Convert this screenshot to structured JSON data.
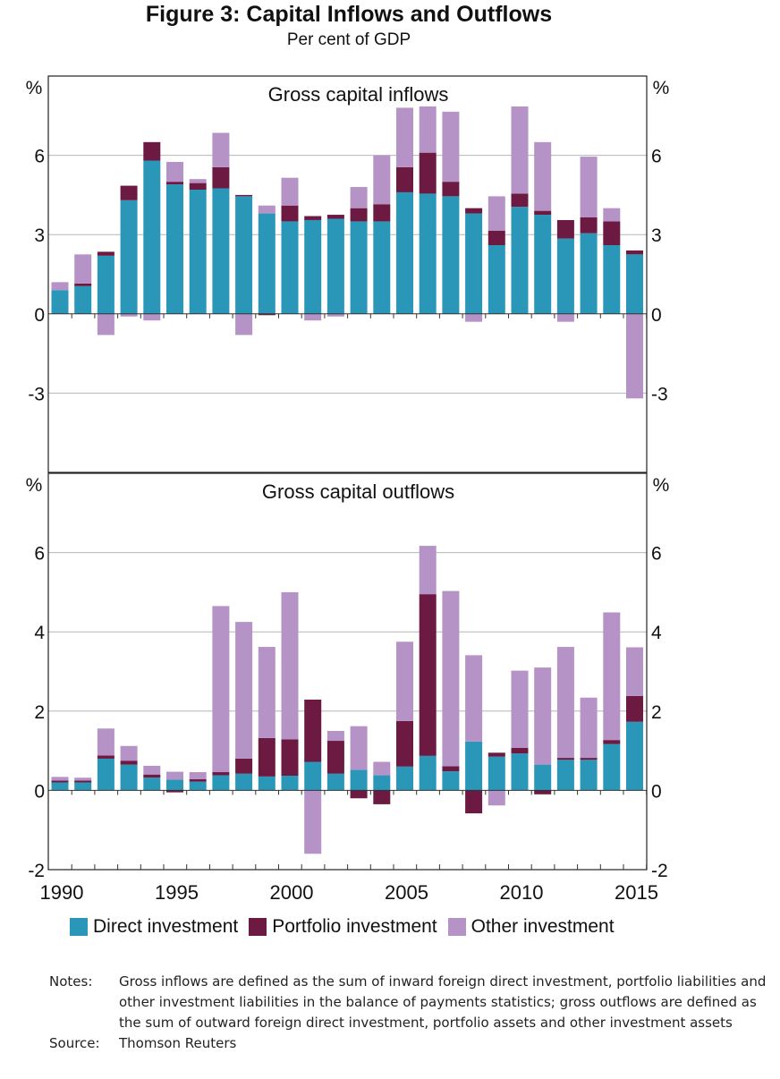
{
  "title": "Figure 3: Capital Inflows and Outflows",
  "subtitle": "Per cent of GDP",
  "colors": {
    "direct": "#2a97b8",
    "portfolio": "#6d1a42",
    "other": "#b593c6"
  },
  "legend": [
    {
      "label": "Direct investment",
      "color": "#2a97b8"
    },
    {
      "label": "Portfolio investment",
      "color": "#6d1a42"
    },
    {
      "label": "Other investment",
      "color": "#b593c6"
    }
  ],
  "notes": {
    "notes_label": "Notes:",
    "notes_text": "Gross inflows are defined as the sum of inward foreign direct investment, portfolio liabilities and other investment liabilities in the balance of payments statistics; gross outflows are defined as the sum of outward foreign direct investment, portfolio assets and other investment assets",
    "source_label": "Source:",
    "source_text": "Thomson Reuters"
  },
  "chart_data": [
    {
      "type": "bar",
      "stacked": true,
      "title": "Gross capital inflows",
      "ylabel": "%",
      "ylim": [
        -6,
        9
      ],
      "yticks": [
        -3,
        0,
        3,
        6
      ],
      "ytick_labels": [
        "-3",
        "0",
        "3",
        "6"
      ],
      "grid": true,
      "categories": [
        1990,
        1991,
        1992,
        1993,
        1994,
        1995,
        1996,
        1997,
        1998,
        1999,
        2000,
        2001,
        2002,
        2003,
        2004,
        2005,
        2006,
        2007,
        2008,
        2009,
        2010,
        2011,
        2012,
        2013,
        2014,
        2015
      ],
      "series": [
        {
          "name": "Direct investment",
          "values": [
            0.9,
            1.05,
            2.2,
            4.3,
            5.8,
            4.9,
            4.7,
            4.75,
            4.45,
            3.8,
            3.5,
            3.55,
            3.6,
            3.5,
            3.5,
            4.6,
            4.55,
            4.45,
            3.8,
            2.6,
            4.05,
            3.75,
            2.85,
            3.05,
            2.6,
            2.25
          ]
        },
        {
          "name": "Portfolio investment",
          "values": [
            0,
            0.1,
            0.15,
            0.55,
            0.7,
            0.1,
            0.25,
            0.8,
            0.05,
            -0.05,
            0.6,
            0.15,
            0.15,
            0.5,
            0.65,
            0.95,
            1.55,
            0.55,
            0.2,
            0.55,
            0.5,
            0.15,
            0.7,
            0.6,
            0.9,
            0.15
          ]
        },
        {
          "name": "Other investment",
          "values": [
            0.3,
            1.1,
            -0.8,
            -0.1,
            -0.25,
            0.75,
            0.15,
            1.3,
            -0.8,
            0.3,
            1.05,
            -0.25,
            -0.1,
            0.8,
            1.85,
            2.25,
            1.75,
            2.65,
            -0.3,
            1.3,
            3.3,
            2.6,
            -0.3,
            2.3,
            0.5,
            -3.2
          ]
        }
      ]
    },
    {
      "type": "bar",
      "stacked": true,
      "title": "Gross capital outflows",
      "ylabel": "%",
      "ylim": [
        -2,
        8
      ],
      "yticks": [
        -2,
        0,
        2,
        4,
        6
      ],
      "ytick_labels": [
        "-2",
        "0",
        "2",
        "4",
        "6"
      ],
      "grid": true,
      "x_tick_labels": [
        "1990",
        "1995",
        "2000",
        "2005",
        "2010",
        "2015"
      ],
      "categories": [
        1990,
        1991,
        1992,
        1993,
        1994,
        1995,
        1996,
        1997,
        1998,
        1999,
        2000,
        2001,
        2002,
        2003,
        2004,
        2005,
        2006,
        2007,
        2008,
        2009,
        2010,
        2011,
        2012,
        2013,
        2014,
        2015
      ],
      "series": [
        {
          "name": "Direct investment",
          "values": [
            0.2,
            0.2,
            0.8,
            0.65,
            0.32,
            0.27,
            0.22,
            0.38,
            0.42,
            0.35,
            0.37,
            0.72,
            0.42,
            0.52,
            0.38,
            0.6,
            0.87,
            0.48,
            1.23,
            0.85,
            0.93,
            0.65,
            0.77,
            0.77,
            1.17,
            1.73
          ]
        },
        {
          "name": "Portfolio investment",
          "values": [
            0.05,
            0.05,
            0.08,
            0.1,
            0.08,
            -0.05,
            0.06,
            0.08,
            0.38,
            0.97,
            0.92,
            1.57,
            0.83,
            -0.2,
            -0.35,
            1.15,
            4.08,
            0.13,
            -0.58,
            0.1,
            0.14,
            -0.1,
            0.05,
            0.05,
            0.1,
            0.65
          ]
        },
        {
          "name": "Other investment",
          "values": [
            0.09,
            0.07,
            0.68,
            0.37,
            0.22,
            0.2,
            0.18,
            4.19,
            3.45,
            2.3,
            3.71,
            -1.6,
            0.25,
            1.1,
            0.34,
            2.0,
            1.22,
            4.42,
            2.18,
            -0.38,
            1.95,
            2.45,
            2.8,
            1.52,
            3.22,
            1.23
          ]
        }
      ]
    }
  ]
}
